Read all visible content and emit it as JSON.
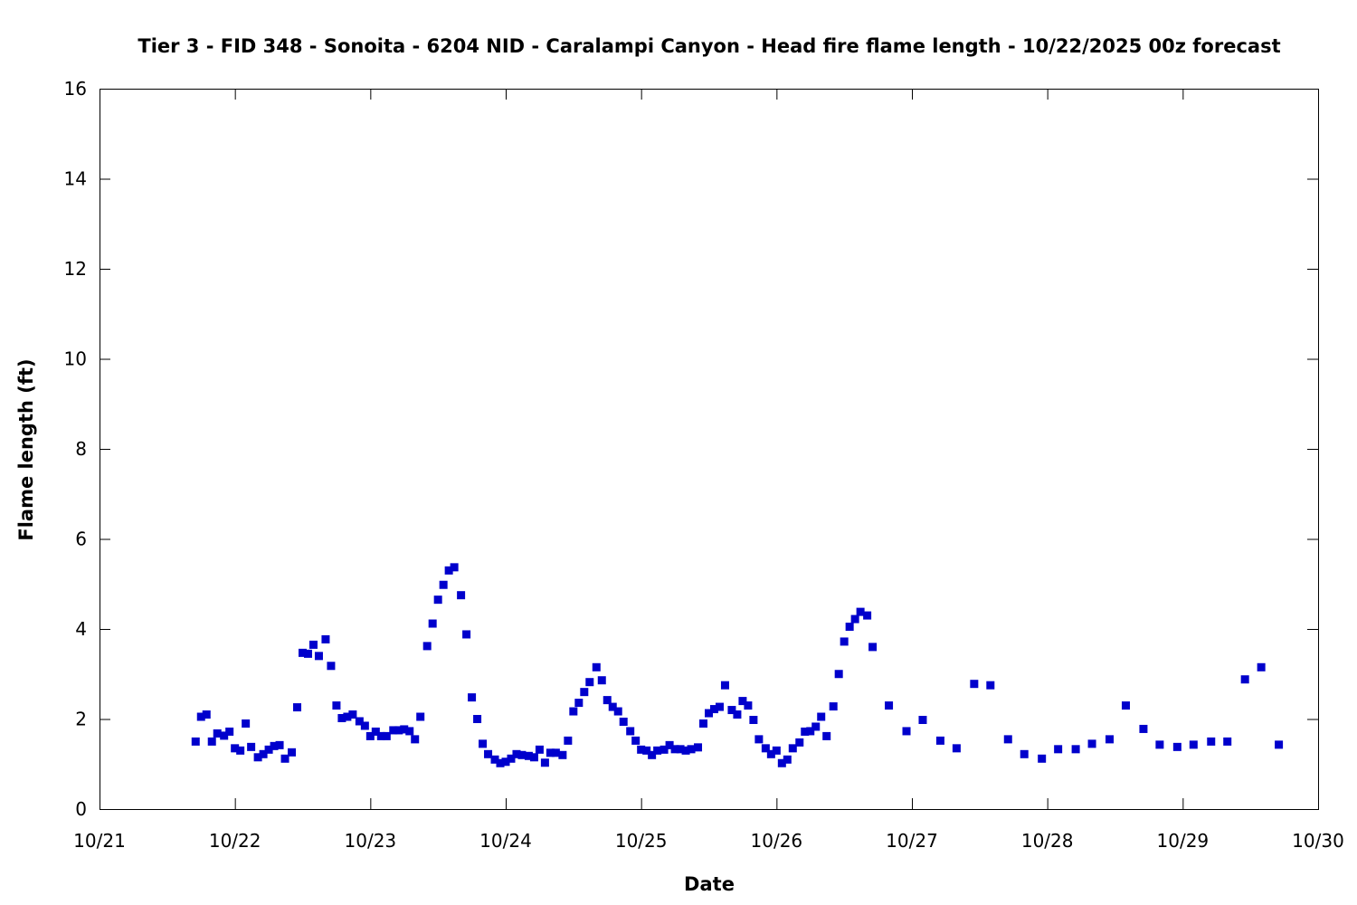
{
  "chart_data": {
    "type": "scatter",
    "title": "Tier 3 - FID 348 - Sonoita - 6204 NID - Caralampi Canyon - Head fire flame length - 10/22/2025 00z forecast",
    "xlabel": "Date",
    "ylabel": "Flame length (ft)",
    "x_ticks": [
      "10/21",
      "10/22",
      "10/23",
      "10/24",
      "10/25",
      "10/26",
      "10/27",
      "10/28",
      "10/29",
      "10/30"
    ],
    "y_ticks": [
      "0",
      "2",
      "4",
      "6",
      "8",
      "10",
      "12",
      "14",
      "16"
    ],
    "xlim": [
      "10/21",
      "10/30"
    ],
    "ylim": [
      0,
      16
    ],
    "grid": false,
    "color": "#0000cc",
    "series": [
      {
        "x_unit": "days after 10/21 00:00",
        "points": [
          [
            0.71,
            1.5
          ],
          [
            0.75,
            2.05
          ],
          [
            0.79,
            2.1
          ],
          [
            0.83,
            1.5
          ],
          [
            0.87,
            1.68
          ],
          [
            0.92,
            1.63
          ],
          [
            0.96,
            1.72
          ],
          [
            1.0,
            1.35
          ],
          [
            1.04,
            1.3
          ],
          [
            1.08,
            1.9
          ],
          [
            1.12,
            1.38
          ],
          [
            1.17,
            1.15
          ],
          [
            1.21,
            1.22
          ],
          [
            1.25,
            1.32
          ],
          [
            1.29,
            1.4
          ],
          [
            1.33,
            1.42
          ],
          [
            1.37,
            1.12
          ],
          [
            1.42,
            1.26
          ],
          [
            1.46,
            2.26
          ],
          [
            1.5,
            3.47
          ],
          [
            1.54,
            3.45
          ],
          [
            1.58,
            3.65
          ],
          [
            1.62,
            3.4
          ],
          [
            1.67,
            3.77
          ],
          [
            1.71,
            3.18
          ],
          [
            1.75,
            2.3
          ],
          [
            1.79,
            2.02
          ],
          [
            1.83,
            2.05
          ],
          [
            1.87,
            2.1
          ],
          [
            1.92,
            1.95
          ],
          [
            1.96,
            1.85
          ],
          [
            2.0,
            1.62
          ],
          [
            2.04,
            1.72
          ],
          [
            2.08,
            1.62
          ],
          [
            2.12,
            1.62
          ],
          [
            2.17,
            1.75
          ],
          [
            2.21,
            1.75
          ],
          [
            2.25,
            1.77
          ],
          [
            2.29,
            1.73
          ],
          [
            2.33,
            1.55
          ],
          [
            2.37,
            2.05
          ],
          [
            2.42,
            3.62
          ],
          [
            2.46,
            4.12
          ],
          [
            2.5,
            4.65
          ],
          [
            2.54,
            4.98
          ],
          [
            2.58,
            5.3
          ],
          [
            2.62,
            5.37
          ],
          [
            2.67,
            4.75
          ],
          [
            2.71,
            3.88
          ],
          [
            2.75,
            2.48
          ],
          [
            2.79,
            2.0
          ],
          [
            2.83,
            1.45
          ],
          [
            2.87,
            1.22
          ],
          [
            2.92,
            1.1
          ],
          [
            2.96,
            1.02
          ],
          [
            3.0,
            1.05
          ],
          [
            3.04,
            1.12
          ],
          [
            3.08,
            1.22
          ],
          [
            3.12,
            1.2
          ],
          [
            3.17,
            1.18
          ],
          [
            3.21,
            1.15
          ],
          [
            3.25,
            1.32
          ],
          [
            3.29,
            1.03
          ],
          [
            3.33,
            1.25
          ],
          [
            3.37,
            1.25
          ],
          [
            3.42,
            1.2
          ],
          [
            3.46,
            1.52
          ],
          [
            3.5,
            2.17
          ],
          [
            3.54,
            2.36
          ],
          [
            3.58,
            2.6
          ],
          [
            3.62,
            2.82
          ],
          [
            3.67,
            3.15
          ],
          [
            3.71,
            2.86
          ],
          [
            3.75,
            2.42
          ],
          [
            3.79,
            2.27
          ],
          [
            3.83,
            2.17
          ],
          [
            3.87,
            1.94
          ],
          [
            3.92,
            1.73
          ],
          [
            3.96,
            1.52
          ],
          [
            4.0,
            1.32
          ],
          [
            4.04,
            1.3
          ],
          [
            4.08,
            1.2
          ],
          [
            4.12,
            1.3
          ],
          [
            4.17,
            1.32
          ],
          [
            4.21,
            1.42
          ],
          [
            4.25,
            1.33
          ],
          [
            4.29,
            1.33
          ],
          [
            4.33,
            1.3
          ],
          [
            4.37,
            1.33
          ],
          [
            4.42,
            1.37
          ],
          [
            4.46,
            1.9
          ],
          [
            4.5,
            2.13
          ],
          [
            4.54,
            2.22
          ],
          [
            4.58,
            2.27
          ],
          [
            4.62,
            2.75
          ],
          [
            4.67,
            2.2
          ],
          [
            4.71,
            2.1
          ],
          [
            4.75,
            2.4
          ],
          [
            4.79,
            2.3
          ],
          [
            4.83,
            1.98
          ],
          [
            4.87,
            1.55
          ],
          [
            4.92,
            1.35
          ],
          [
            4.96,
            1.22
          ],
          [
            5.0,
            1.3
          ],
          [
            5.04,
            1.02
          ],
          [
            5.08,
            1.1
          ],
          [
            5.12,
            1.35
          ],
          [
            5.17,
            1.48
          ],
          [
            5.21,
            1.72
          ],
          [
            5.25,
            1.73
          ],
          [
            5.29,
            1.83
          ],
          [
            5.33,
            2.05
          ],
          [
            5.37,
            1.62
          ],
          [
            5.42,
            2.28
          ],
          [
            5.46,
            3.0
          ],
          [
            5.5,
            3.72
          ],
          [
            5.54,
            4.05
          ],
          [
            5.58,
            4.22
          ],
          [
            5.62,
            4.38
          ],
          [
            5.67,
            4.3
          ],
          [
            5.71,
            3.6
          ],
          [
            5.83,
            2.3
          ],
          [
            5.96,
            1.73
          ],
          [
            6.08,
            1.98
          ],
          [
            6.21,
            1.52
          ],
          [
            6.33,
            1.35
          ],
          [
            6.46,
            2.78
          ],
          [
            6.58,
            2.75
          ],
          [
            6.71,
            1.55
          ],
          [
            6.83,
            1.22
          ],
          [
            6.96,
            1.12
          ],
          [
            7.08,
            1.33
          ],
          [
            7.21,
            1.33
          ],
          [
            7.33,
            1.45
          ],
          [
            7.46,
            1.55
          ],
          [
            7.58,
            2.3
          ],
          [
            7.71,
            1.78
          ],
          [
            7.83,
            1.43
          ],
          [
            7.96,
            1.38
          ],
          [
            8.08,
            1.43
          ],
          [
            8.21,
            1.5
          ],
          [
            8.33,
            1.5
          ],
          [
            8.46,
            2.88
          ],
          [
            8.58,
            3.15
          ],
          [
            8.71,
            1.43
          ]
        ]
      }
    ]
  }
}
